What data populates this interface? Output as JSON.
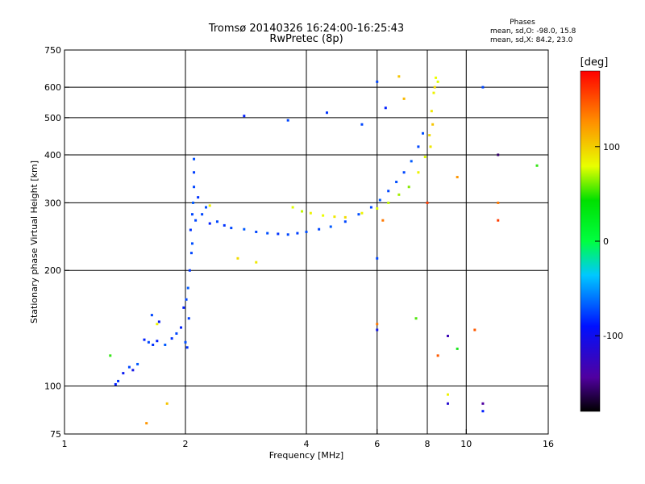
{
  "chart_data": {
    "type": "scatter",
    "title": "Tromsø 20140326 16:24:00-16:25:43",
    "subtitle": "RwPretec (8p)",
    "xlabel": "Frequency [MHz]",
    "ylabel": "Stationary phase Virtual Height [km]",
    "x_scale": "log",
    "y_scale": "log",
    "xlim": [
      1,
      16
    ],
    "ylim": [
      75,
      750
    ],
    "x_ticks": [
      1,
      2,
      4,
      6,
      8,
      10,
      16
    ],
    "x_tick_labels": [
      "1",
      "2",
      "4",
      "6",
      "8",
      "10",
      "16"
    ],
    "y_ticks": [
      75,
      100,
      200,
      300,
      400,
      500,
      600,
      750
    ],
    "y_tick_labels": [
      "75",
      "100",
      "200",
      "300",
      "400",
      "500",
      "600",
      "750"
    ],
    "grid_x": [
      2,
      4,
      6,
      8,
      10
    ],
    "grid_y": [
      100,
      200,
      300,
      400,
      500,
      600
    ],
    "legend": {
      "heading": "Phases",
      "line1": "mean, sd,O: -98.0, 15.8",
      "line2": "mean, sd,X:  84.2, 23.0"
    },
    "colorbar": {
      "label": "[deg]",
      "range": [
        -180,
        180
      ],
      "ticks": [
        100,
        0,
        -100
      ],
      "tick_labels": [
        "100",
        "0",
        "-100"
      ]
    },
    "series": [
      {
        "mode": "O",
        "points": [
          [
            1.34,
            101,
            -110
          ],
          [
            1.36,
            103,
            -105
          ],
          [
            1.4,
            108,
            -115
          ],
          [
            1.45,
            112,
            -100
          ],
          [
            1.48,
            110,
            -120
          ],
          [
            1.52,
            114,
            -95
          ],
          [
            1.58,
            132,
            -110
          ],
          [
            1.62,
            130,
            -100
          ],
          [
            1.66,
            128,
            -105
          ],
          [
            1.7,
            131,
            -110
          ],
          [
            1.65,
            153,
            -100
          ],
          [
            1.72,
            147,
            -115
          ],
          [
            1.78,
            128,
            -95
          ],
          [
            1.85,
            133,
            -105
          ],
          [
            1.9,
            137,
            -100
          ],
          [
            1.95,
            142,
            -110
          ],
          [
            2.0,
            130,
            -98
          ],
          [
            2.02,
            126,
            -105
          ],
          [
            2.04,
            150,
            -102
          ],
          [
            1.98,
            160,
            -110
          ],
          [
            2.01,
            168,
            -100
          ],
          [
            2.03,
            180,
            -95
          ],
          [
            2.05,
            200,
            -104
          ],
          [
            2.07,
            222,
            -100
          ],
          [
            2.08,
            235,
            -98
          ],
          [
            2.06,
            255,
            -105
          ],
          [
            2.08,
            280,
            -100
          ],
          [
            2.09,
            300,
            -95
          ],
          [
            2.1,
            330,
            -100
          ],
          [
            2.1,
            360,
            -102
          ],
          [
            2.1,
            390,
            -98
          ],
          [
            2.12,
            270,
            -100
          ],
          [
            2.15,
            310,
            -105
          ],
          [
            2.2,
            280,
            -100
          ],
          [
            2.25,
            292,
            -98
          ],
          [
            2.3,
            265,
            -110
          ],
          [
            2.4,
            268,
            -100
          ],
          [
            2.5,
            262,
            -105
          ],
          [
            2.6,
            258,
            -100
          ],
          [
            2.8,
            256,
            -95
          ],
          [
            3.0,
            252,
            -100
          ],
          [
            3.2,
            250,
            -98
          ],
          [
            3.4,
            249,
            -105
          ],
          [
            3.6,
            248,
            -100
          ],
          [
            3.8,
            250,
            -102
          ],
          [
            4.0,
            252,
            -98
          ],
          [
            4.3,
            256,
            -100
          ],
          [
            4.6,
            260,
            -95
          ],
          [
            5.0,
            268,
            -100
          ],
          [
            5.4,
            280,
            -98
          ],
          [
            5.8,
            292,
            -100
          ],
          [
            6.1,
            305,
            -95
          ],
          [
            6.4,
            322,
            -100
          ],
          [
            6.7,
            340,
            -98
          ],
          [
            7.0,
            360,
            -100
          ],
          [
            7.3,
            385,
            -95
          ],
          [
            7.6,
            420,
            -100
          ],
          [
            7.8,
            455,
            -98
          ],
          [
            6.0,
            620,
            -100
          ],
          [
            6.3,
            530,
            -110
          ],
          [
            4.5,
            515,
            -105
          ],
          [
            3.6,
            492,
            -100
          ],
          [
            2.8,
            505,
            -110
          ],
          [
            5.5,
            480,
            -100
          ],
          [
            6.0,
            215,
            -100
          ],
          [
            6.0,
            140,
            -120
          ],
          [
            9.0,
            135,
            -140
          ],
          [
            11.0,
            90,
            -150
          ],
          [
            11.0,
            86,
            -110
          ],
          [
            11.0,
            600,
            -100
          ],
          [
            12.0,
            400,
            -160
          ],
          [
            9.0,
            90,
            -130
          ]
        ]
      },
      {
        "mode": "X",
        "points": [
          [
            3.7,
            292,
            80
          ],
          [
            3.9,
            285,
            70
          ],
          [
            4.1,
            282,
            90
          ],
          [
            4.4,
            278,
            85
          ],
          [
            4.7,
            276,
            95
          ],
          [
            5.0,
            275,
            100
          ],
          [
            5.5,
            282,
            90
          ],
          [
            6.0,
            290,
            80
          ],
          [
            6.4,
            300,
            70
          ],
          [
            6.8,
            315,
            60
          ],
          [
            7.2,
            330,
            50
          ],
          [
            7.6,
            360,
            90
          ],
          [
            7.9,
            395,
            80
          ],
          [
            8.1,
            450,
            100
          ],
          [
            8.2,
            520,
            95
          ],
          [
            8.3,
            580,
            90
          ],
          [
            8.4,
            635,
            85
          ],
          [
            8.35,
            600,
            100
          ],
          [
            8.25,
            480,
            110
          ],
          [
            8.15,
            420,
            95
          ],
          [
            7.0,
            560,
            115
          ],
          [
            6.8,
            640,
            110
          ],
          [
            8.5,
            620,
            80
          ],
          [
            2.3,
            295,
            90
          ],
          [
            2.7,
            215,
            100
          ],
          [
            3.0,
            210,
            95
          ],
          [
            1.8,
            90,
            110
          ],
          [
            1.6,
            80,
            130
          ],
          [
            8.5,
            120,
            150
          ],
          [
            6.0,
            145,
            140
          ],
          [
            10.5,
            140,
            150
          ],
          [
            9.5,
            350,
            130
          ],
          [
            12.0,
            300,
            140
          ],
          [
            15.0,
            375,
            20
          ],
          [
            9.5,
            125,
            10
          ],
          [
            1.3,
            120,
            20
          ],
          [
            6.2,
            270,
            140
          ],
          [
            8.0,
            300,
            160
          ],
          [
            9.0,
            95,
            90
          ],
          [
            7.5,
            150,
            30
          ],
          [
            12.0,
            270,
            160
          ],
          [
            1.7,
            145,
            90
          ]
        ]
      }
    ]
  }
}
